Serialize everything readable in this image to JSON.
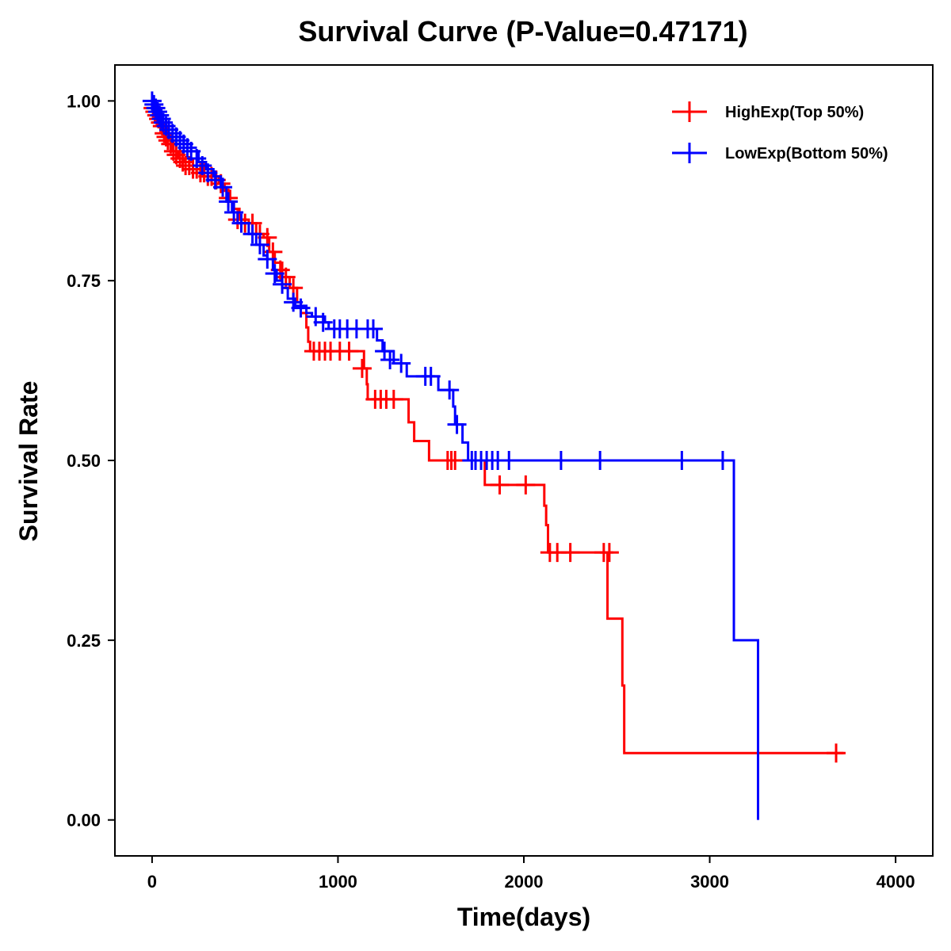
{
  "chart_data": {
    "type": "line",
    "title": "Survival Curve (P-Value=0.47171)",
    "xlabel": "Time(days)",
    "ylabel": "Survival Rate",
    "xlim": [
      -200,
      4200
    ],
    "ylim": [
      -0.05,
      1.05
    ],
    "xticks": [
      0,
      1000,
      2000,
      3000,
      4000
    ],
    "xtick_labels": [
      "0",
      "1000",
      "2000",
      "3000",
      "4000"
    ],
    "yticks": [
      0,
      0.25,
      0.5,
      0.75,
      1.0
    ],
    "ytick_labels": [
      "0.00",
      "0.25",
      "0.50",
      "0.75",
      "1.00"
    ],
    "grid": false,
    "legend_position": "top-right",
    "series": [
      {
        "name": "HighExp(Top 50%)",
        "color": "#ff0000",
        "steps": [
          [
            0,
            1.0
          ],
          [
            20,
            0.99
          ],
          [
            40,
            0.975
          ],
          [
            60,
            0.965
          ],
          [
            80,
            0.95
          ],
          [
            110,
            0.93
          ],
          [
            140,
            0.92
          ],
          [
            170,
            0.915
          ],
          [
            200,
            0.91
          ],
          [
            240,
            0.905
          ],
          [
            280,
            0.9
          ],
          [
            320,
            0.895
          ],
          [
            360,
            0.885
          ],
          [
            390,
            0.875
          ],
          [
            420,
            0.86
          ],
          [
            440,
            0.85
          ],
          [
            470,
            0.835
          ],
          [
            520,
            0.83
          ],
          [
            560,
            0.815
          ],
          [
            600,
            0.81
          ],
          [
            630,
            0.79
          ],
          [
            660,
            0.775
          ],
          [
            700,
            0.755
          ],
          [
            740,
            0.74
          ],
          [
            780,
            0.72
          ],
          [
            800,
            0.705
          ],
          [
            830,
            0.685
          ],
          [
            840,
            0.665
          ],
          [
            850,
            0.652
          ],
          [
            1140,
            0.628
          ],
          [
            1155,
            0.606
          ],
          [
            1160,
            0.585
          ],
          [
            1380,
            0.553
          ],
          [
            1410,
            0.527
          ],
          [
            1490,
            0.5
          ],
          [
            1790,
            0.466
          ],
          [
            2110,
            0.437
          ],
          [
            2120,
            0.41
          ],
          [
            2130,
            0.372
          ],
          [
            2450,
            0.28
          ],
          [
            2530,
            0.187
          ],
          [
            2540,
            0.093
          ]
        ],
        "end_x": 3720,
        "censors": [
          [
            5,
            0.99
          ],
          [
            15,
            0.985
          ],
          [
            25,
            0.98
          ],
          [
            35,
            0.975
          ],
          [
            45,
            0.97
          ],
          [
            55,
            0.965
          ],
          [
            65,
            0.955
          ],
          [
            75,
            0.95
          ],
          [
            85,
            0.945
          ],
          [
            100,
            0.94
          ],
          [
            115,
            0.93
          ],
          [
            130,
            0.925
          ],
          [
            150,
            0.92
          ],
          [
            165,
            0.915
          ],
          [
            180,
            0.91
          ],
          [
            200,
            0.91
          ],
          [
            220,
            0.905
          ],
          [
            240,
            0.905
          ],
          [
            260,
            0.9
          ],
          [
            280,
            0.9
          ],
          [
            300,
            0.895
          ],
          [
            320,
            0.895
          ],
          [
            345,
            0.89
          ],
          [
            370,
            0.885
          ],
          [
            410,
            0.865
          ],
          [
            460,
            0.835
          ],
          [
            500,
            0.83
          ],
          [
            540,
            0.83
          ],
          [
            580,
            0.815
          ],
          [
            620,
            0.81
          ],
          [
            650,
            0.79
          ],
          [
            690,
            0.765
          ],
          [
            720,
            0.755
          ],
          [
            760,
            0.74
          ],
          [
            870,
            0.652
          ],
          [
            900,
            0.652
          ],
          [
            930,
            0.652
          ],
          [
            960,
            0.652
          ],
          [
            1010,
            0.652
          ],
          [
            1060,
            0.652
          ],
          [
            1130,
            0.628
          ],
          [
            1200,
            0.585
          ],
          [
            1230,
            0.585
          ],
          [
            1260,
            0.585
          ],
          [
            1300,
            0.585
          ],
          [
            1590,
            0.5
          ],
          [
            1610,
            0.5
          ],
          [
            1630,
            0.5
          ],
          [
            1870,
            0.466
          ],
          [
            2010,
            0.466
          ],
          [
            2140,
            0.372
          ],
          [
            2180,
            0.372
          ],
          [
            2250,
            0.372
          ],
          [
            2430,
            0.372
          ],
          [
            2460,
            0.372
          ],
          [
            3680,
            0.093
          ]
        ]
      },
      {
        "name": "LowExp(Bottom 50%)",
        "color": "#0000ff",
        "steps": [
          [
            0,
            1.0
          ],
          [
            20,
            0.99
          ],
          [
            40,
            0.98
          ],
          [
            60,
            0.97
          ],
          [
            90,
            0.96
          ],
          [
            130,
            0.95
          ],
          [
            170,
            0.94
          ],
          [
            210,
            0.93
          ],
          [
            250,
            0.915
          ],
          [
            290,
            0.905
          ],
          [
            330,
            0.895
          ],
          [
            370,
            0.88
          ],
          [
            400,
            0.86
          ],
          [
            430,
            0.845
          ],
          [
            460,
            0.83
          ],
          [
            520,
            0.815
          ],
          [
            560,
            0.8
          ],
          [
            600,
            0.785
          ],
          [
            620,
            0.78
          ],
          [
            650,
            0.765
          ],
          [
            670,
            0.75
          ],
          [
            700,
            0.74
          ],
          [
            730,
            0.725
          ],
          [
            770,
            0.715
          ],
          [
            830,
            0.705
          ],
          [
            860,
            0.7
          ],
          [
            930,
            0.692
          ],
          [
            950,
            0.683
          ],
          [
            1210,
            0.667
          ],
          [
            1240,
            0.652
          ],
          [
            1300,
            0.635
          ],
          [
            1370,
            0.617
          ],
          [
            1540,
            0.598
          ],
          [
            1620,
            0.575
          ],
          [
            1630,
            0.55
          ],
          [
            1670,
            0.525
          ],
          [
            1700,
            0.5
          ],
          [
            3130,
            0.25
          ],
          [
            3260,
            0.0
          ]
        ],
        "end_x": 3260,
        "censors": [
          [
            0,
            1.0
          ],
          [
            10,
            0.995
          ],
          [
            20,
            0.99
          ],
          [
            30,
            0.985
          ],
          [
            40,
            0.98
          ],
          [
            50,
            0.975
          ],
          [
            60,
            0.97
          ],
          [
            75,
            0.965
          ],
          [
            90,
            0.96
          ],
          [
            110,
            0.955
          ],
          [
            130,
            0.95
          ],
          [
            150,
            0.945
          ],
          [
            170,
            0.94
          ],
          [
            190,
            0.935
          ],
          [
            210,
            0.93
          ],
          [
            240,
            0.92
          ],
          [
            270,
            0.91
          ],
          [
            300,
            0.9
          ],
          [
            340,
            0.89
          ],
          [
            380,
            0.88
          ],
          [
            410,
            0.86
          ],
          [
            440,
            0.845
          ],
          [
            480,
            0.83
          ],
          [
            540,
            0.815
          ],
          [
            580,
            0.8
          ],
          [
            620,
            0.78
          ],
          [
            660,
            0.76
          ],
          [
            700,
            0.745
          ],
          [
            760,
            0.72
          ],
          [
            800,
            0.712
          ],
          [
            880,
            0.7
          ],
          [
            920,
            0.692
          ],
          [
            980,
            0.683
          ],
          [
            1010,
            0.683
          ],
          [
            1050,
            0.683
          ],
          [
            1100,
            0.683
          ],
          [
            1160,
            0.683
          ],
          [
            1190,
            0.683
          ],
          [
            1250,
            0.652
          ],
          [
            1280,
            0.64
          ],
          [
            1340,
            0.635
          ],
          [
            1470,
            0.617
          ],
          [
            1500,
            0.617
          ],
          [
            1600,
            0.598
          ],
          [
            1640,
            0.55
          ],
          [
            1720,
            0.5
          ],
          [
            1740,
            0.5
          ],
          [
            1770,
            0.5
          ],
          [
            1800,
            0.5
          ],
          [
            1830,
            0.5
          ],
          [
            1860,
            0.5
          ],
          [
            1920,
            0.5
          ],
          [
            2200,
            0.5
          ],
          [
            2410,
            0.5
          ],
          [
            2850,
            0.5
          ],
          [
            3070,
            0.5
          ]
        ]
      }
    ]
  }
}
